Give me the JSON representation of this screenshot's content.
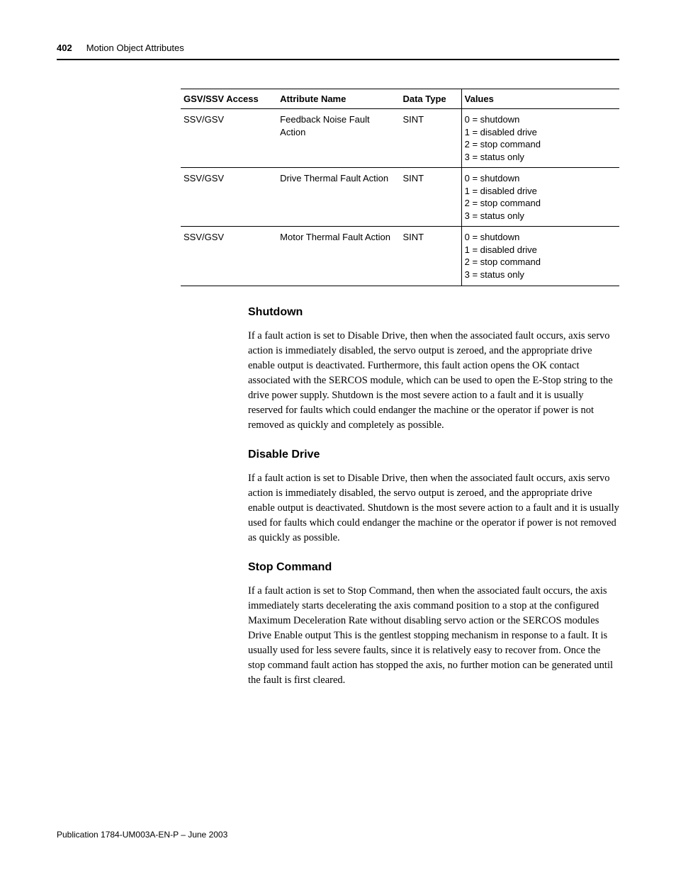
{
  "header": {
    "page_number": "402",
    "chapter_title": "Motion Object Attributes"
  },
  "table": {
    "columns": [
      "GSV/SSV Access",
      "Attribute Name",
      "Data Type",
      "Values"
    ],
    "rows": [
      {
        "access": "SSV/GSV",
        "attribute": "Feedback Noise Fault Action",
        "datatype": "SINT",
        "values": [
          "0 = shutdown",
          "1 = disabled drive",
          "2 = stop command",
          "3 = status only"
        ]
      },
      {
        "access": "SSV/GSV",
        "attribute": "Drive Thermal Fault Action",
        "datatype": "SINT",
        "values": [
          "0 = shutdown",
          "1 = disabled drive",
          "2 = stop command",
          "3 = status only"
        ]
      },
      {
        "access": "SSV/GSV",
        "attribute": "Motor Thermal Fault Action",
        "datatype": "SINT",
        "values": [
          "0 = shutdown",
          "1 = disabled drive",
          "2 = stop command",
          "3 = status only"
        ]
      }
    ]
  },
  "sections": [
    {
      "heading": "Shutdown",
      "body": "If a fault action is set to Disable Drive, then when the associated fault occurs, axis servo action is immediately disabled, the servo output is zeroed, and the appropriate drive enable output is deactivated. Furthermore, this fault action opens the OK contact associated with the SERCOS module, which can be used to open the E-Stop string to the drive power supply. Shutdown is the most severe action to a fault and it is usually reserved for faults which could endanger the machine or the operator if power is not removed as quickly and completely as possible."
    },
    {
      "heading": "Disable Drive",
      "body": "If a fault action is set to Disable Drive, then when the associated fault occurs, axis servo action is immediately disabled, the servo output is zeroed, and the appropriate drive enable output is deactivated. Shutdown is the most severe action to a fault and it is usually used for faults which could endanger the machine or the operator if power is not removed as quickly as possible."
    },
    {
      "heading": "Stop Command",
      "body": "If a fault action is set to Stop Command, then when the associated fault occurs, the axis immediately starts decelerating the axis command position to a stop at the configured Maximum Deceleration Rate without disabling servo action or the SERCOS modules Drive Enable output This is the gentlest stopping mechanism in response to a fault. It is usually used for less severe faults, since it is relatively easy to recover from. Once the stop command fault action has stopped the axis, no further motion can be generated until the fault is first cleared."
    }
  ],
  "footer": {
    "publication": "Publication 1784-UM003A-EN-P – June 2003"
  }
}
